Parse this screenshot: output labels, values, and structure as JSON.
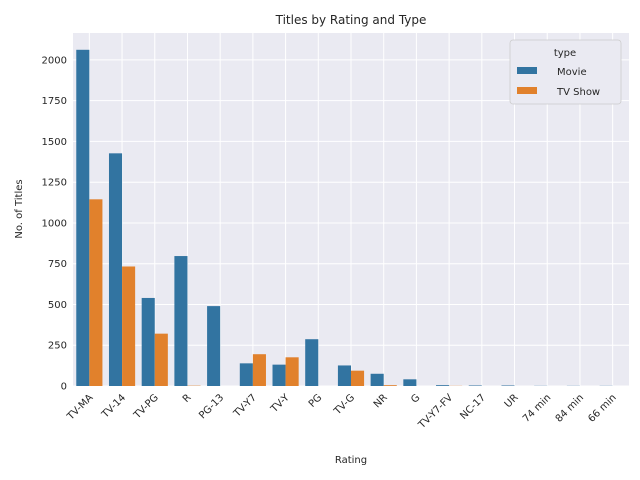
{
  "chart_data": {
    "type": "bar",
    "title": "Titles by Rating and Type",
    "xlabel": "Rating",
    "ylabel": "No. of Titles",
    "ylim": [
      0,
      2165
    ],
    "yticks": [
      0,
      250,
      500,
      750,
      1000,
      1250,
      1500,
      1750,
      2000
    ],
    "grid": true,
    "legend": {
      "title": "type",
      "placement": "top-right"
    },
    "categories": [
      "TV-MA",
      "TV-14",
      "TV-PG",
      "R",
      "PG-13",
      "TV-Y7",
      "TV-Y",
      "PG",
      "TV-G",
      "NR",
      "G",
      "TV-Y7-FV",
      "NC-17",
      "UR",
      "74 min",
      "84 min",
      "66 min"
    ],
    "series": [
      {
        "name": "Movie",
        "color": "#3274a1",
        "values": [
          2062,
          1427,
          540,
          797,
          490,
          139,
          131,
          287,
          126,
          75,
          41,
          5,
          3,
          3,
          1,
          1,
          1
        ]
      },
      {
        "name": "TV Show",
        "color": "#e1812c",
        "values": [
          1145,
          733,
          321,
          2,
          0,
          195,
          176,
          0,
          94,
          5,
          0,
          1,
          0,
          0,
          0,
          0,
          0
        ]
      }
    ]
  }
}
